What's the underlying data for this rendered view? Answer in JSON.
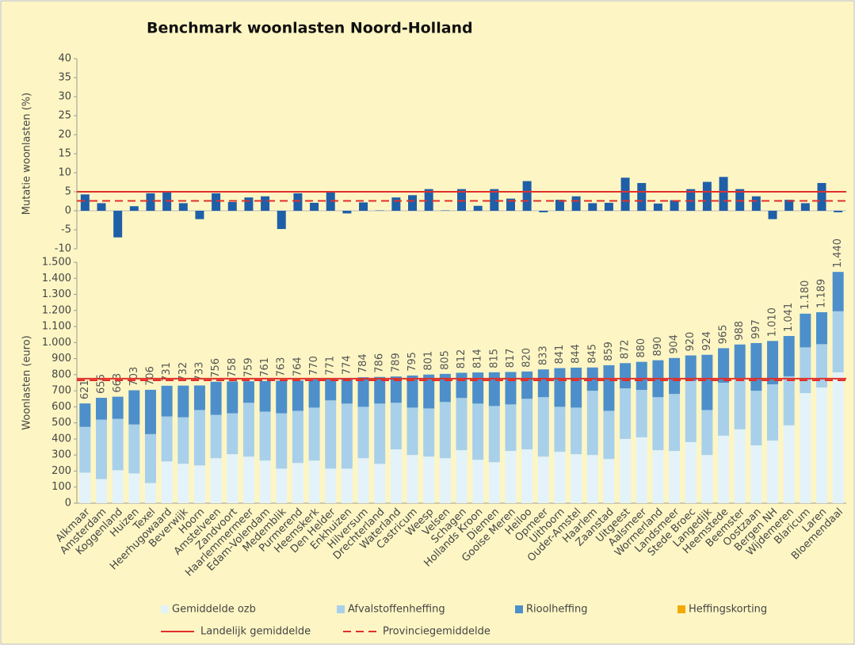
{
  "title": "Benchmark woonlasten Noord-Holland",
  "legend_extra": [
    {
      "name": "Heffingskorting",
      "color": "#f2a900"
    }
  ],
  "chart_data": [
    {
      "type": "bar",
      "ylabel": "Mutatie woonlasten (%)",
      "color": "#1f5fa8",
      "ylim": [
        -10,
        40
      ],
      "yticks": [
        -10,
        -5,
        0,
        5,
        10,
        15,
        20,
        25,
        30,
        35,
        40
      ],
      "values": [
        4.3,
        2.0,
        -7.0,
        1.2,
        4.6,
        5.0,
        2.0,
        -2.2,
        4.6,
        2.3,
        3.5,
        3.8,
        -4.8,
        4.6,
        2.1,
        5.0,
        -0.7,
        2.2,
        0.1,
        3.5,
        4.1,
        5.7,
        0.1,
        5.7,
        1.3,
        5.7,
        3.2,
        7.8,
        -0.4,
        2.9,
        3.8,
        2.0,
        2.1,
        8.7,
        7.3,
        1.9,
        2.8,
        5.7,
        7.6,
        8.9,
        5.7,
        3.8,
        -2.2,
        2.9,
        2.0,
        7.3,
        -0.4
      ],
      "reference_lines": [
        5.0,
        2.6
      ]
    },
    {
      "type": "stacked_bar",
      "ylabel": "Woonlasten (euro)",
      "ylim": [
        0,
        1500
      ],
      "yticks": [
        0,
        100,
        200,
        300,
        400,
        500,
        600,
        700,
        800,
        900,
        {
          "value": 1000,
          "label": "1.000"
        },
        {
          "value": 1100,
          "label": "1.100"
        },
        {
          "value": 1200,
          "label": "1.200"
        },
        {
          "value": 1300,
          "label": "1.300"
        },
        {
          "value": 1400,
          "label": "1.400"
        },
        {
          "value": 1500,
          "label": "1.500"
        }
      ],
      "categories": [
        "Alkmaar",
        "Amsterdam",
        "Koggenland",
        "Huizen",
        "Texel",
        "Heerhugowaard",
        "Beverwijk",
        "Hoorn",
        "Amstelveen",
        "Zandvoort",
        "Haarlemmermeer",
        "Edam-Volendam",
        "Medemblik",
        "Purmerend",
        "Heemskerk",
        "Den Helder",
        "Enkhuizen",
        "Hilversum",
        "Drechterland",
        "Waterland",
        "Castricum",
        "Weesp",
        "Velsen",
        "Schagen",
        "Hollands Kroon",
        "Diemen",
        "Gooise Meren",
        "Heiloo",
        "Opmeer",
        "Uithoorn",
        "Ouder-Amstel",
        "Haarlem",
        "Zaanstad",
        "Uitgeest",
        "Aalsmeer",
        "Wormerland",
        "Landsmeer",
        "Stede Broec",
        "Langedijk",
        "Heemstede",
        "Beemster",
        "Oostzaan",
        "Bergen NH",
        "Wijdemeren",
        "Blaricum",
        "Laren",
        "Bloemendaal"
      ],
      "series": [
        {
          "name": "Gemiddelde ozb",
          "color": "#e4f3f9",
          "values": [
            190,
            150,
            205,
            185,
            125,
            260,
            245,
            235,
            280,
            305,
            290,
            265,
            215,
            250,
            265,
            215,
            215,
            280,
            245,
            335,
            300,
            290,
            280,
            330,
            270,
            255,
            325,
            335,
            290,
            320,
            305,
            300,
            275,
            400,
            410,
            330,
            325,
            380,
            300,
            420,
            460,
            360,
            390,
            485,
            685,
            720,
            815
          ]
        },
        {
          "name": "Afvalstoffenheffing",
          "color": "#a8d0ea",
          "values": [
            285,
            370,
            320,
            305,
            305,
            280,
            290,
            345,
            270,
            255,
            335,
            305,
            345,
            325,
            330,
            425,
            405,
            320,
            375,
            290,
            295,
            300,
            350,
            325,
            350,
            350,
            290,
            315,
            370,
            280,
            290,
            400,
            300,
            315,
            295,
            330,
            355,
            380,
            280,
            330,
            320,
            340,
            350,
            305,
            285,
            270,
            380
          ]
        },
        {
          "name": "Rioolheffing",
          "color": "#4d8fcb",
          "values": [
            146,
            136,
            138,
            213,
            276,
            191,
            197,
            153,
            206,
            198,
            134,
            191,
            203,
            189,
            175,
            131,
            154,
            184,
            166,
            164,
            200,
            211,
            175,
            157,
            194,
            210,
            202,
            170,
            173,
            241,
            249,
            145,
            284,
            157,
            175,
            230,
            224,
            160,
            344,
            215,
            208,
            297,
            270,
            251,
            210,
            199,
            245
          ]
        }
      ],
      "totals": [
        621,
        656,
        663,
        703,
        706,
        731,
        732,
        733,
        756,
        758,
        759,
        761,
        763,
        764,
        770,
        771,
        774,
        784,
        786,
        789,
        795,
        801,
        805,
        812,
        814,
        815,
        817,
        820,
        833,
        841,
        844,
        845,
        859,
        872,
        880,
        890,
        904,
        920,
        924,
        965,
        988,
        997,
        {
          "value": 1010,
          "label": "1.010"
        },
        {
          "value": 1041,
          "label": "1.041"
        },
        {
          "value": 1180,
          "label": "1.180"
        },
        {
          "value": 1189,
          "label": "1.189"
        },
        {
          "value": 1440,
          "label": "1.440"
        }
      ],
      "reference_lines": [
        {
          "name": "Landelijk gemiddelde",
          "color": "#e0302a",
          "dash": false,
          "value": 775
        },
        {
          "name": "Provinciegemiddelde",
          "color": "#e0302a",
          "dash": true,
          "value": 765
        }
      ]
    }
  ]
}
